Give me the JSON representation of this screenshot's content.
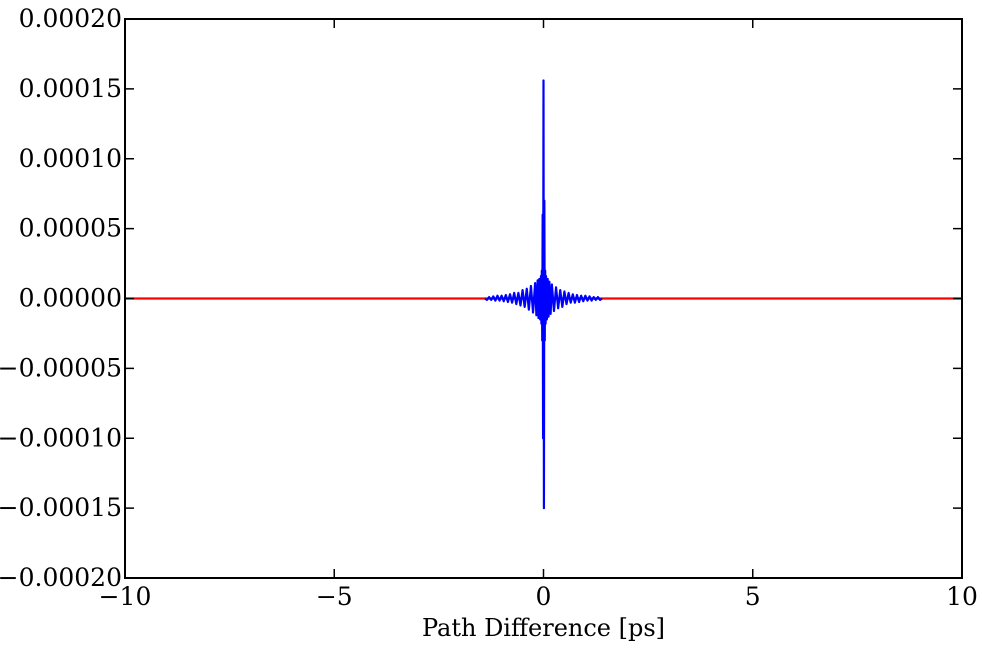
{
  "chart_data": {
    "type": "line",
    "title": "",
    "xlabel": "Path Difference [ps]",
    "ylabel": "",
    "xlim": [
      -10,
      10
    ],
    "ylim": [
      -0.0002,
      0.0002
    ],
    "x_ticks": [
      -10,
      -5,
      0,
      5,
      10
    ],
    "x_tick_labels": [
      "−10",
      "−5",
      "0",
      "5",
      "10"
    ],
    "y_ticks": [
      -0.0002,
      -0.00015,
      -0.0001,
      -5e-05,
      0,
      5e-05,
      0.0001,
      0.00015,
      0.0002
    ],
    "y_tick_labels": [
      "−0.00020",
      "−0.00015",
      "−0.00010",
      "−0.00005",
      "0.00000",
      "0.00005",
      "0.00010",
      "0.00015",
      "0.00020"
    ],
    "grid": false,
    "legend": "none",
    "series": [
      {
        "color": "#ff0000",
        "x": [
          -10,
          -1.4,
          1.4,
          10
        ],
        "y": [
          0,
          0,
          0,
          0
        ]
      },
      {
        "color": "#0000ff",
        "x": [
          -1.4,
          -1.35,
          -1.3,
          -1.25,
          -1.2,
          -1.15,
          -1.1,
          -1.05,
          -1.0,
          -0.95,
          -0.9,
          -0.85,
          -0.8,
          -0.75,
          -0.7,
          -0.65,
          -0.6,
          -0.55,
          -0.5,
          -0.45,
          -0.4,
          -0.35,
          -0.3,
          -0.25,
          -0.2,
          -0.17,
          -0.14,
          -0.12,
          -0.1,
          -0.08,
          -0.06,
          -0.05,
          -0.04,
          -0.03,
          -0.02,
          -0.01,
          0.0,
          0.01,
          0.02,
          0.03,
          0.04,
          0.05,
          0.06,
          0.08,
          0.1,
          0.12,
          0.14,
          0.17,
          0.2,
          0.25,
          0.3,
          0.35,
          0.4,
          0.45,
          0.5,
          0.55,
          0.6,
          0.65,
          0.7,
          0.75,
          0.8,
          0.85,
          0.9,
          0.95,
          1.0,
          1.05,
          1.1,
          1.15,
          1.2,
          1.25,
          1.3,
          1.35,
          1.4
        ],
        "y": [
          0.0,
          -1e-06,
          1e-06,
          -1e-06,
          1.5e-06,
          -1.5e-06,
          2e-06,
          -1.5e-06,
          2e-06,
          -2e-06,
          2.5e-06,
          -2.5e-06,
          3e-06,
          -3e-06,
          4e-06,
          -4e-06,
          4e-06,
          -5e-06,
          6e-06,
          -6e-06,
          7e-06,
          -8e-06,
          9e-06,
          -1e-05,
          1.1e-05,
          -1.2e-05,
          1.3e-05,
          -1.4e-05,
          1.4e-05,
          -1.5e-05,
          1.6e-05,
          -1.8e-05,
          2e-05,
          -3e-05,
          6e-05,
          -0.0001,
          0.000156,
          -0.00015,
          7e-05,
          -3e-05,
          2e-05,
          -1.8e-05,
          1.6e-05,
          -1.5e-05,
          1.4e-05,
          -1.3e-05,
          1.2e-05,
          -1.1e-05,
          1e-05,
          -9e-06,
          8e-06,
          -7e-06,
          6e-06,
          -6e-06,
          5e-06,
          -4e-06,
          4e-06,
          -3e-06,
          3e-06,
          -3e-06,
          2.5e-06,
          -2.5e-06,
          2e-06,
          -2e-06,
          2e-06,
          -1.5e-06,
          1.5e-06,
          -1.5e-06,
          1e-06,
          -1e-06,
          1e-06,
          -1e-06,
          0.0
        ]
      }
    ]
  }
}
